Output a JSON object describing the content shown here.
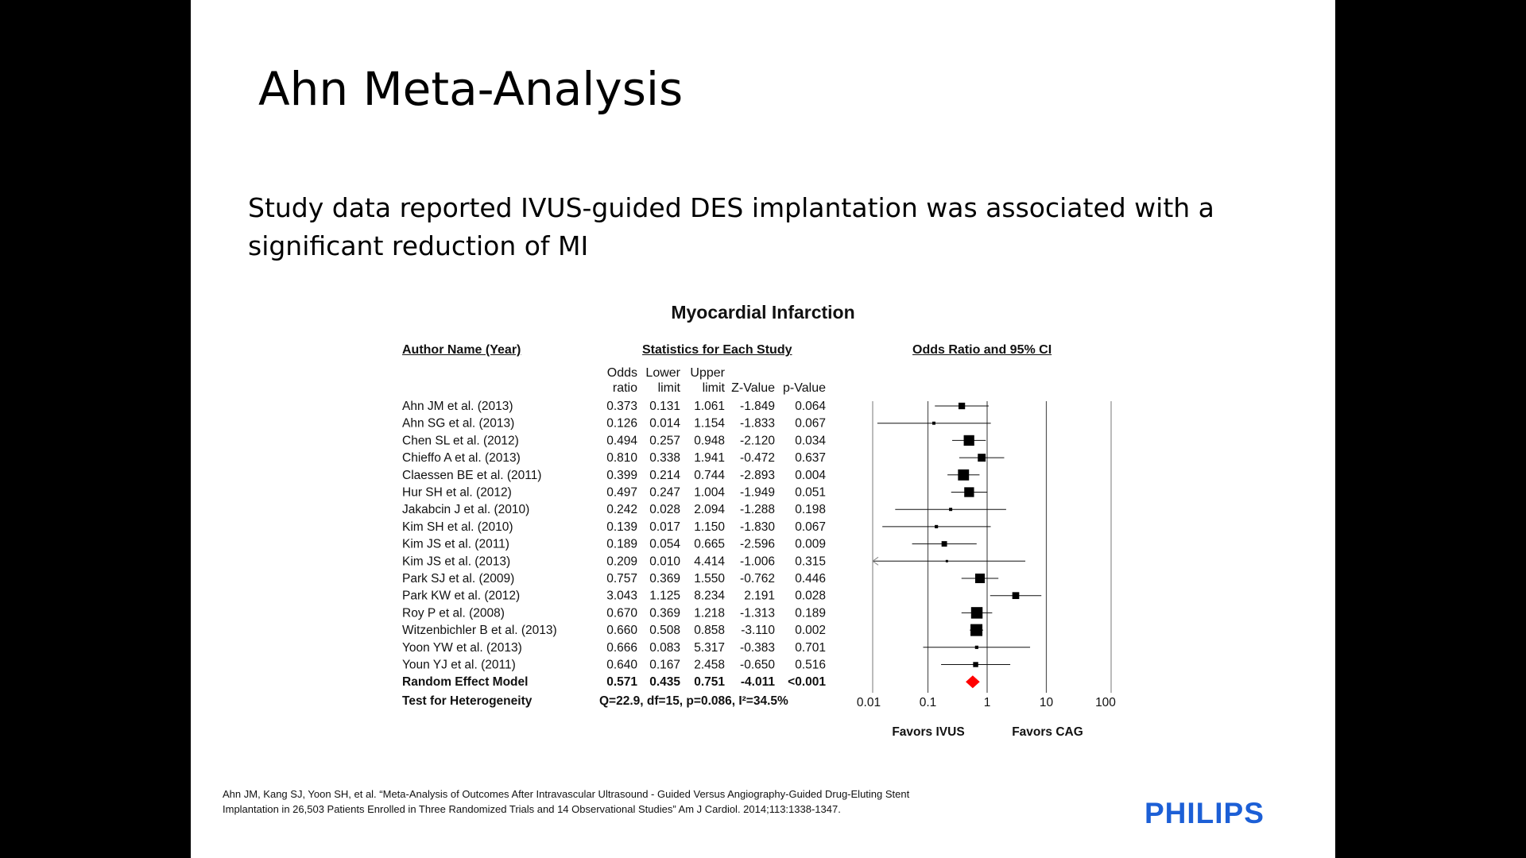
{
  "slide": {
    "title": "Ahn Meta-Analysis",
    "body": "Study data reported IVUS-guided DES implantation was associated with a significant reduction of MI",
    "citation": "Ahn JM, Kang SJ, Yoon SH, et al. “Meta-Analysis of Outcomes After Intravascular Ultrasound  - Guided Versus Angiography-Guided Drug-Eluting Stent Implantation in 26,503 Patients Enrolled in Three Randomized Trials and 14 Observational Studies” Am J Cardiol. 2014;113:1338-1347.",
    "brand": "PHILIPS",
    "brand_color": "#1c5fd6"
  },
  "chart_data": {
    "type": "forest",
    "title": "Myocardial Infarction",
    "headers": {
      "author": "Author Name (Year)",
      "stats": "Statistics for Each Study",
      "plot": "Odds Ratio and 95% CI"
    },
    "columns": [
      {
        "key": "or",
        "label": [
          "Odds",
          "ratio"
        ]
      },
      {
        "key": "lower",
        "label": [
          "Lower",
          "limit"
        ]
      },
      {
        "key": "upper",
        "label": [
          "Upper",
          "limit"
        ]
      },
      {
        "key": "z",
        "label": [
          "",
          "Z-Value"
        ]
      },
      {
        "key": "p",
        "label": [
          "",
          "p-Value"
        ]
      }
    ],
    "studies": [
      {
        "name": "Ahn JM et al. (2013)",
        "or": 0.373,
        "lower": 0.131,
        "upper": 1.061,
        "z": "-1.849",
        "p": "0.064"
      },
      {
        "name": "Ahn SG et al. (2013)",
        "or": 0.126,
        "lower": 0.014,
        "upper": 1.154,
        "z": "-1.833",
        "p": "0.067"
      },
      {
        "name": "Chen SL et al. (2012)",
        "or": 0.494,
        "lower": 0.257,
        "upper": 0.948,
        "z": "-2.120",
        "p": "0.034"
      },
      {
        "name": "Chieffo A et al. (2013)",
        "or": 0.81,
        "lower": 0.338,
        "upper": 1.941,
        "z": "-0.472",
        "p": "0.637"
      },
      {
        "name": "Claessen BE et al. (2011)",
        "or": 0.399,
        "lower": 0.214,
        "upper": 0.744,
        "z": "-2.893",
        "p": "0.004"
      },
      {
        "name": "Hur SH et al. (2012)",
        "or": 0.497,
        "lower": 0.247,
        "upper": 1.004,
        "z": "-1.949",
        "p": "0.051"
      },
      {
        "name": "Jakabcin J et al. (2010)",
        "or": 0.242,
        "lower": 0.028,
        "upper": 2.094,
        "z": "-1.288",
        "p": "0.198"
      },
      {
        "name": "Kim SH et al. (2010)",
        "or": 0.139,
        "lower": 0.017,
        "upper": 1.15,
        "z": "-1.830",
        "p": "0.067"
      },
      {
        "name": "Kim JS et al. (2011)",
        "or": 0.189,
        "lower": 0.054,
        "upper": 0.665,
        "z": "-2.596",
        "p": "0.009"
      },
      {
        "name": "Kim JS et al. (2013)",
        "or": 0.209,
        "lower": 0.01,
        "upper": 4.414,
        "z": "-1.006",
        "p": "0.315"
      },
      {
        "name": "Park SJ et al. (2009)",
        "or": 0.757,
        "lower": 0.369,
        "upper": 1.55,
        "z": "-0.762",
        "p": "0.446"
      },
      {
        "name": "Park KW et al. (2012)",
        "or": 3.043,
        "lower": 1.125,
        "upper": 8.234,
        "z": "2.191",
        "p": "0.028"
      },
      {
        "name": "Roy P et al. (2008)",
        "or": 0.67,
        "lower": 0.369,
        "upper": 1.218,
        "z": "-1.313",
        "p": "0.189"
      },
      {
        "name": "Witzenbichler B et al. (2013)",
        "or": 0.66,
        "lower": 0.508,
        "upper": 0.858,
        "z": "-3.110",
        "p": "0.002"
      },
      {
        "name": "Yoon YW et al. (2013)",
        "or": 0.666,
        "lower": 0.083,
        "upper": 5.317,
        "z": "-0.383",
        "p": "0.701"
      },
      {
        "name": "Youn YJ et al. (2011)",
        "or": 0.64,
        "lower": 0.167,
        "upper": 2.458,
        "z": "-0.650",
        "p": "0.516"
      }
    ],
    "summary": {
      "name": "Random Effect Model",
      "or": 0.571,
      "lower": 0.435,
      "upper": 0.751,
      "z": "-4.011",
      "p": "<0.001"
    },
    "heterogeneity": {
      "name": "Test for Heterogeneity",
      "text": "Q=22.9, df=15, p=0.086, I²=34.5%"
    },
    "x_axis": {
      "scale": "log",
      "ticks": [
        "0.01",
        "0.1",
        "1",
        "10",
        "100"
      ]
    },
    "favors_left": "Favors IVUS",
    "favors_right": "Favors CAG",
    "summary_color": "#ff0000"
  }
}
